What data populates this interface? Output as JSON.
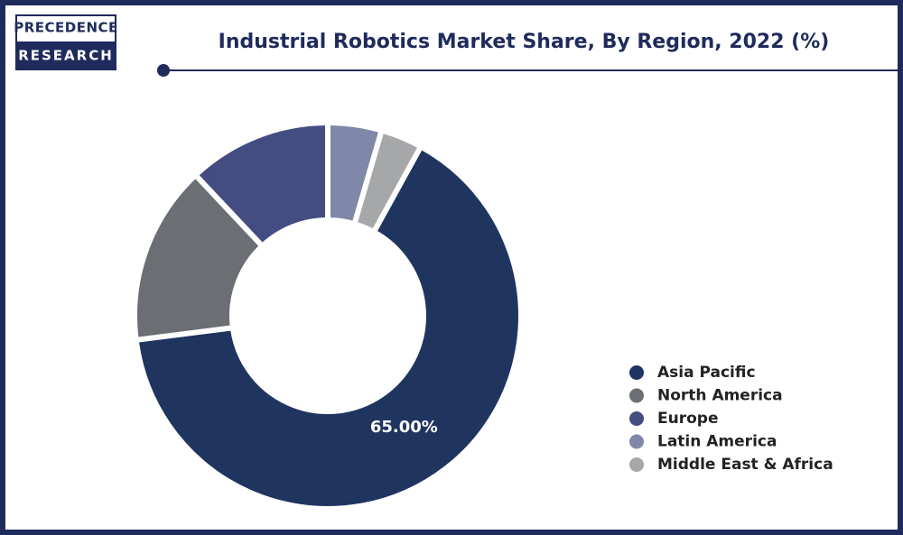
{
  "logo": [
    "PRECEDENCE",
    "RESEARCH"
  ],
  "chart_data": {
    "type": "donut",
    "title": "Industrial Robotics Market Share, By Region, 2022 (%)",
    "categories": [
      "Asia Pacific",
      "North America",
      "Europe",
      "Latin America",
      "Middle East & Africa"
    ],
    "values": [
      65,
      15,
      12,
      4.5,
      3.5
    ],
    "value_labels": [
      "65.00%",
      null,
      null,
      null,
      null
    ],
    "colors": [
      "#1f3560",
      "#6b6e72",
      "#434d82",
      "#7f88a8",
      "#a6a7a9"
    ],
    "draw_order": [
      3,
      4,
      0,
      1,
      2
    ],
    "legend": "right"
  }
}
